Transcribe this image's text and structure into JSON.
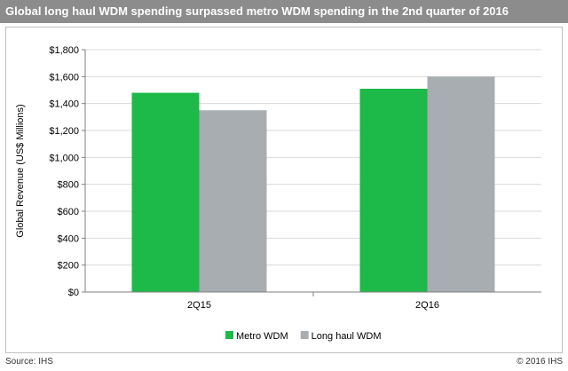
{
  "title": "Global long haul WDM spending surpassed metro WDM spending in the 2nd quarter of 2016",
  "footer": {
    "source": "Source: IHS",
    "copyright": "© 2016 IHS"
  },
  "colors": {
    "title_bar": "#8c8c8c",
    "metro": "#1db949",
    "long_haul": "#a7adb0"
  },
  "chart_data": {
    "type": "bar",
    "title": "Global long haul WDM spending surpassed metro WDM spending in the 2nd quarter of 2016",
    "xlabel": "",
    "ylabel": "Global Revenue (US$ Millions)",
    "categories": [
      "2Q15",
      "2Q16"
    ],
    "series": [
      {
        "name": "Metro WDM",
        "values": [
          1480,
          1510
        ],
        "color": "#1db949"
      },
      {
        "name": "Long haul WDM",
        "values": [
          1350,
          1600
        ],
        "color": "#a7adb0"
      }
    ],
    "ylim": [
      0,
      1800
    ],
    "yticks": [
      "$0",
      "$200",
      "$400",
      "$600",
      "$800",
      "$1,000",
      "$1,200",
      "$1,400",
      "$1,600",
      "$1,800"
    ],
    "grid": true,
    "legend": "bottom-center"
  }
}
